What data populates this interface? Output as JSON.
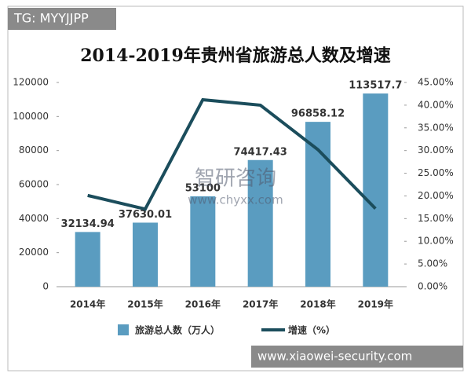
{
  "chart_data": {
    "type": "bar",
    "title": "2014-2019年贵州省旅游总人数及增速",
    "categories": [
      "2014年",
      "2015年",
      "2016年",
      "2017年",
      "2018年",
      "2019年"
    ],
    "series": [
      {
        "name": "旅游总人数（万人）",
        "type": "bar",
        "color": "#5a9cc0",
        "axis": "y",
        "values": [
          32134.94,
          37630.01,
          53100,
          74417.43,
          96858.12,
          113517.7
        ]
      },
      {
        "name": "增速（%）",
        "type": "line",
        "color": "#1b4d5c",
        "axis": "y2",
        "values": [
          20.1,
          17.1,
          41.2,
          40.0,
          30.2,
          17.2
        ]
      }
    ],
    "ylim": [
      0,
      120000
    ],
    "yticks": [
      0,
      20000,
      40000,
      60000,
      80000,
      100000,
      120000
    ],
    "y2lim": [
      0,
      45
    ],
    "y2ticks": [
      {
        "value": 0,
        "label": "0.00%"
      },
      {
        "value": 5,
        "label": "5.00%"
      },
      {
        "value": 10,
        "label": "10.00%"
      },
      {
        "value": 15,
        "label": "15.00%"
      },
      {
        "value": 20,
        "label": "20.00%"
      },
      {
        "value": 25,
        "label": "25.00%"
      },
      {
        "value": 30,
        "label": "30.00%"
      },
      {
        "value": 35,
        "label": "35.00%"
      },
      {
        "value": 40,
        "label": "40.00%"
      },
      {
        "value": 45,
        "label": "45.00%"
      }
    ],
    "grid": false,
    "legend": "bottom"
  },
  "watermarks": [
    "TG: MYYJJPP",
    "智研咨询",
    "www.chyxx.com",
    "www.xiaowei-security.com"
  ]
}
